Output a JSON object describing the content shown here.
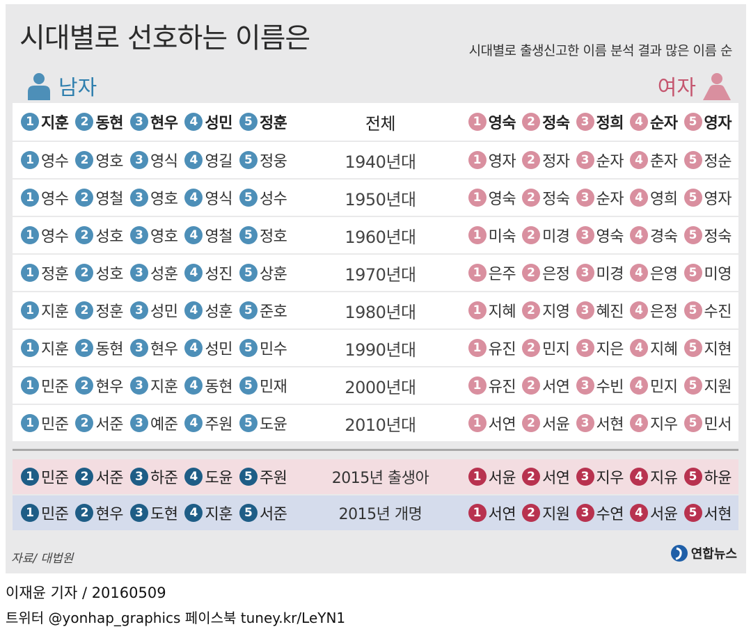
{
  "title": "시대별로 선호하는 이름은",
  "subtitle": "시대별로 출생신고한 이름 분석 결과 많은 이름 순",
  "male_label": "남자",
  "female_label": "여자",
  "colors": {
    "male_badge": "#4d8fb8",
    "female_badge": "#d98f9f",
    "male_badge_2015": "#1e5d86",
    "female_badge_2015": "#b8324f",
    "birth_row_bg": "#f3dde1",
    "rename_row_bg": "#d5dcec"
  },
  "rows": [
    {
      "era": "전체",
      "male": [
        "지훈",
        "동현",
        "현우",
        "성민",
        "정훈"
      ],
      "female": [
        "영숙",
        "정숙",
        "정희",
        "순자",
        "영자"
      ]
    },
    {
      "era": "1940년대",
      "male": [
        "영수",
        "영호",
        "영식",
        "영길",
        "정웅"
      ],
      "female": [
        "영자",
        "정자",
        "순자",
        "춘자",
        "정순"
      ]
    },
    {
      "era": "1950년대",
      "male": [
        "영수",
        "영철",
        "영호",
        "영식",
        "성수"
      ],
      "female": [
        "영숙",
        "정숙",
        "순자",
        "영희",
        "영자"
      ]
    },
    {
      "era": "1960년대",
      "male": [
        "영수",
        "성호",
        "영호",
        "영철",
        "정호"
      ],
      "female": [
        "미숙",
        "미경",
        "영숙",
        "경숙",
        "정숙"
      ]
    },
    {
      "era": "1970년대",
      "male": [
        "정훈",
        "성호",
        "성훈",
        "성진",
        "상훈"
      ],
      "female": [
        "은주",
        "은정",
        "미경",
        "은영",
        "미영"
      ]
    },
    {
      "era": "1980년대",
      "male": [
        "지훈",
        "정훈",
        "성민",
        "성훈",
        "준호"
      ],
      "female": [
        "지혜",
        "지영",
        "혜진",
        "은정",
        "수진"
      ]
    },
    {
      "era": "1990년대",
      "male": [
        "지훈",
        "동현",
        "현우",
        "성민",
        "민수"
      ],
      "female": [
        "유진",
        "민지",
        "지은",
        "지혜",
        "지현"
      ]
    },
    {
      "era": "2000년대",
      "male": [
        "민준",
        "현우",
        "지훈",
        "동현",
        "민재"
      ],
      "female": [
        "유진",
        "서연",
        "수빈",
        "민지",
        "지원"
      ]
    },
    {
      "era": "2010년대",
      "male": [
        "민준",
        "서준",
        "예준",
        "주원",
        "도윤"
      ],
      "female": [
        "서연",
        "서윤",
        "서현",
        "지우",
        "민서"
      ]
    }
  ],
  "rows_2015": [
    {
      "era": "2015년 출생아",
      "male": [
        "민준",
        "서준",
        "하준",
        "도윤",
        "주원"
      ],
      "female": [
        "서윤",
        "서연",
        "지우",
        "지유",
        "하윤"
      ]
    },
    {
      "era": "2015년 개명",
      "male": [
        "민준",
        "현우",
        "도현",
        "지훈",
        "서준"
      ],
      "female": [
        "서연",
        "지원",
        "수연",
        "서윤",
        "서현"
      ]
    }
  ],
  "source": "자료/ 대법원",
  "logo_text": "연합뉴스",
  "reporter": "이재윤 기자 / 20160509",
  "social": "트위터 @yonhap_graphics  페이스북 tuney.kr/LeYN1"
}
